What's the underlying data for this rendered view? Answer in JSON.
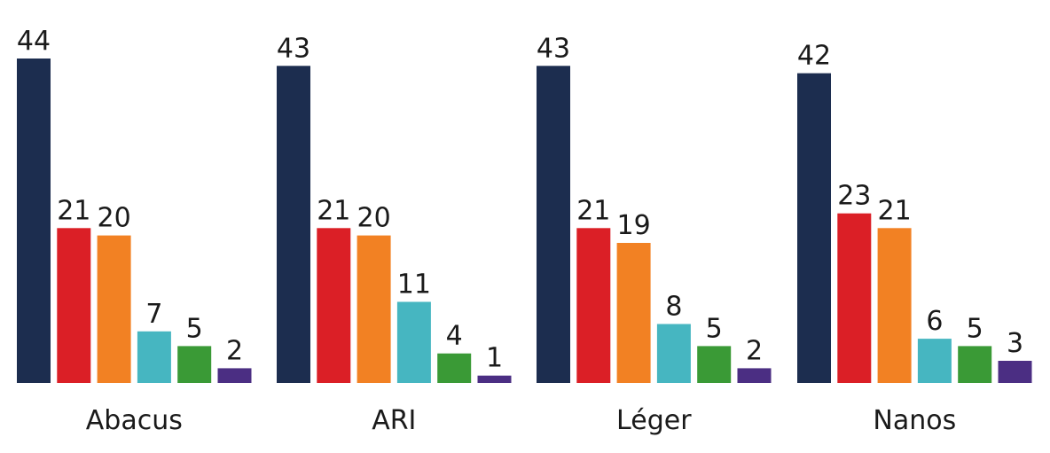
{
  "chart_data": {
    "type": "bar",
    "categories": [
      "Abacus",
      "ARI",
      "Léger",
      "Nanos"
    ],
    "series": [
      {
        "values": [
          44,
          43,
          43,
          42
        ],
        "color": "#1c2d4f"
      },
      {
        "values": [
          21,
          21,
          21,
          23
        ],
        "color": "#db1f26"
      },
      {
        "values": [
          20,
          20,
          19,
          21
        ],
        "color": "#f28123"
      },
      {
        "values": [
          7,
          11,
          8,
          6
        ],
        "color": "#46b6c1"
      },
      {
        "values": [
          5,
          4,
          5,
          5
        ],
        "color": "#3a9a36"
      },
      {
        "values": [
          2,
          1,
          2,
          3
        ],
        "color": "#4b2e83"
      }
    ],
    "ylim": [
      0,
      44
    ],
    "grid": false,
    "legend": "none",
    "title": "",
    "xlabel": "",
    "ylabel": ""
  }
}
